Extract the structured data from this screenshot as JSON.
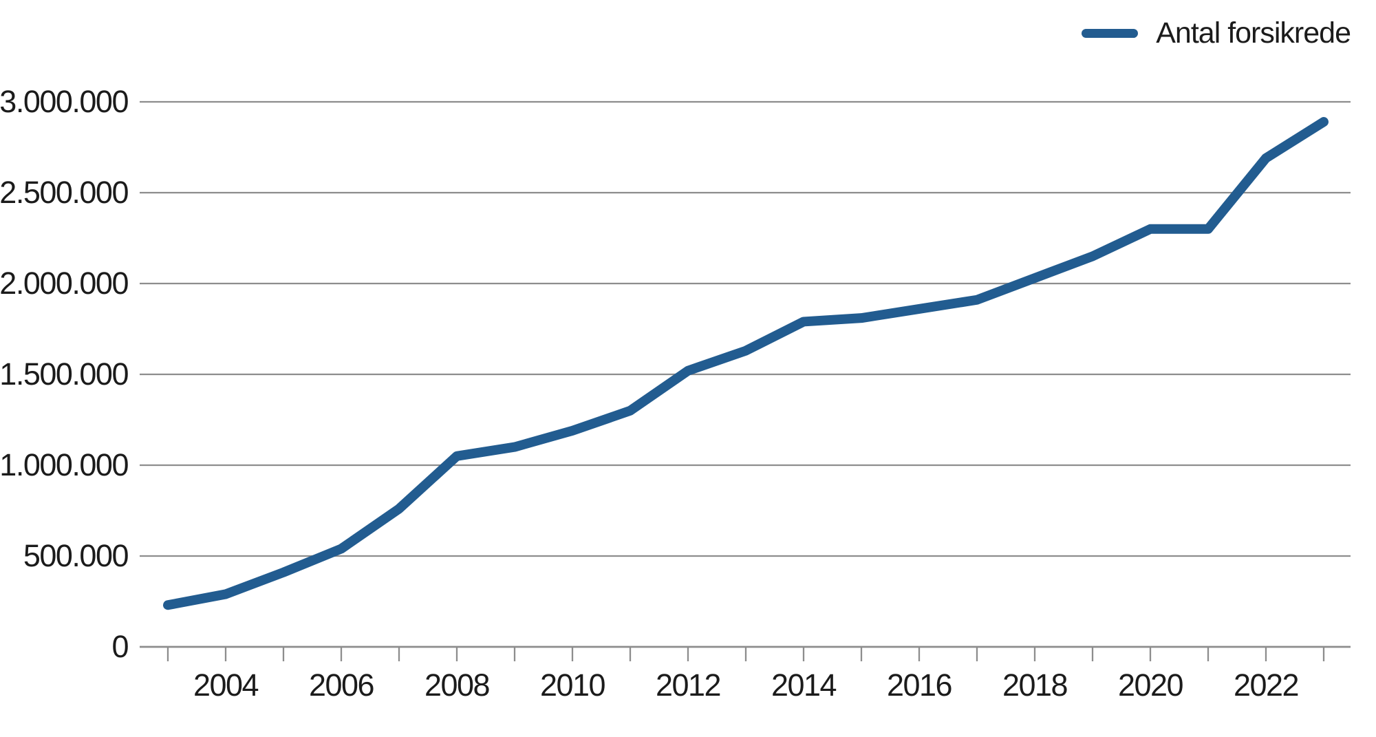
{
  "chart_data": {
    "type": "line",
    "title": "",
    "xlabel": "",
    "ylabel": "",
    "x_range": [
      2003,
      2023
    ],
    "ylim": [
      0,
      3000000
    ],
    "grid": true,
    "legend_position": "top-right",
    "number_format": "da-DK (dot as thousands separator)",
    "series": [
      {
        "name": "Antal forsikrede",
        "color": "#225c90",
        "x": [
          2003,
          2004,
          2005,
          2006,
          2007,
          2008,
          2009,
          2010,
          2011,
          2012,
          2013,
          2014,
          2015,
          2016,
          2017,
          2018,
          2019,
          2020,
          2021,
          2022,
          2023
        ],
        "values": [
          230000,
          290000,
          410000,
          540000,
          760000,
          1050000,
          1100000,
          1190000,
          1300000,
          1520000,
          1630000,
          1790000,
          1810000,
          1860000,
          1910000,
          2030000,
          2150000,
          2300000,
          2300000,
          2690000,
          2890000
        ]
      }
    ],
    "y_ticks": [
      {
        "value": 0,
        "label": "0"
      },
      {
        "value": 500000,
        "label": "500.000"
      },
      {
        "value": 1000000,
        "label": "1.000.000"
      },
      {
        "value": 1500000,
        "label": "1.500.000"
      },
      {
        "value": 2000000,
        "label": "2.000.000"
      },
      {
        "value": 2500000,
        "label": "2.500.000"
      },
      {
        "value": 3000000,
        "label": "3.000.000"
      }
    ],
    "x_ticks": [
      2003,
      2004,
      2005,
      2006,
      2007,
      2008,
      2009,
      2010,
      2011,
      2012,
      2013,
      2014,
      2015,
      2016,
      2017,
      2018,
      2019,
      2020,
      2021,
      2022,
      2023
    ],
    "x_tick_labels": [
      {
        "year": 2004,
        "label": "2004"
      },
      {
        "year": 2006,
        "label": "2006"
      },
      {
        "year": 2008,
        "label": "2008"
      },
      {
        "year": 2010,
        "label": "2010"
      },
      {
        "year": 2012,
        "label": "2012"
      },
      {
        "year": 2014,
        "label": "2014"
      },
      {
        "year": 2016,
        "label": "2016"
      },
      {
        "year": 2018,
        "label": "2018"
      },
      {
        "year": 2020,
        "label": "2020"
      },
      {
        "year": 2022,
        "label": "2022"
      }
    ],
    "colors": {
      "line": "#225c90",
      "grid": "#8d8d8d",
      "axis": "#8d8d8d",
      "text": "#1b1b1b",
      "background": "#ffffff"
    }
  }
}
